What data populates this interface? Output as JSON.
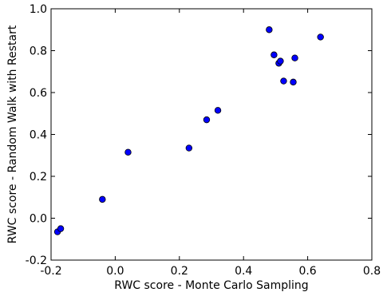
{
  "chart_data": {
    "type": "scatter",
    "title": "",
    "xlabel": "RWC score - Monte Carlo Sampling",
    "ylabel": "RWC score - Random Walk with Restart",
    "xlim": [
      -0.2,
      0.8
    ],
    "ylim": [
      -0.2,
      1.0
    ],
    "xticks": [
      -0.2,
      0.0,
      0.2,
      0.4,
      0.6,
      0.8
    ],
    "yticks": [
      -0.2,
      0.0,
      0.2,
      0.4,
      0.6,
      0.8,
      1.0
    ],
    "xtick_labels": [
      "-0.2",
      "0.0",
      "0.2",
      "0.4",
      "0.6",
      "0.8"
    ],
    "ytick_labels": [
      "-0.2",
      "0.0",
      "0.2",
      "0.4",
      "0.6",
      "0.8",
      "1.0"
    ],
    "grid": false,
    "marker_color": "#0000ff",
    "points": [
      {
        "x": -0.18,
        "y": -0.065
      },
      {
        "x": -0.17,
        "y": -0.05
      },
      {
        "x": -0.04,
        "y": 0.09
      },
      {
        "x": 0.04,
        "y": 0.315
      },
      {
        "x": 0.23,
        "y": 0.335
      },
      {
        "x": 0.285,
        "y": 0.47
      },
      {
        "x": 0.32,
        "y": 0.515
      },
      {
        "x": 0.48,
        "y": 0.9
      },
      {
        "x": 0.495,
        "y": 0.78
      },
      {
        "x": 0.51,
        "y": 0.74
      },
      {
        "x": 0.515,
        "y": 0.75
      },
      {
        "x": 0.525,
        "y": 0.655
      },
      {
        "x": 0.555,
        "y": 0.65
      },
      {
        "x": 0.56,
        "y": 0.765
      },
      {
        "x": 0.64,
        "y": 0.865
      }
    ]
  }
}
